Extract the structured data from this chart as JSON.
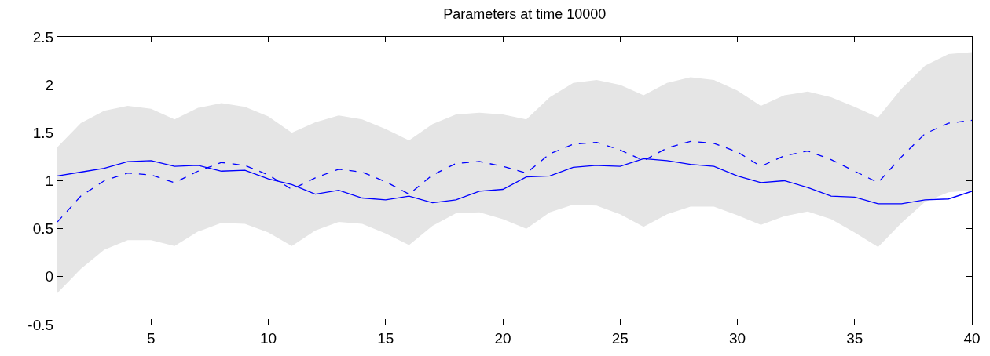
{
  "chart_data": {
    "type": "line",
    "title": "Parameters at time 10000",
    "x": [
      1,
      2,
      3,
      4,
      5,
      6,
      7,
      8,
      9,
      10,
      11,
      12,
      13,
      14,
      15,
      16,
      17,
      18,
      19,
      20,
      21,
      22,
      23,
      24,
      25,
      26,
      27,
      28,
      29,
      30,
      31,
      32,
      33,
      34,
      35,
      36,
      37,
      38,
      39,
      40
    ],
    "series": [
      {
        "color": "#0000ff",
        "line_style": "solid",
        "values": [
          1.05,
          1.09,
          1.13,
          1.2,
          1.21,
          1.15,
          1.16,
          1.1,
          1.11,
          1.02,
          0.96,
          0.86,
          0.9,
          0.82,
          0.8,
          0.84,
          0.77,
          0.8,
          0.89,
          0.91,
          1.04,
          1.05,
          1.14,
          1.16,
          1.15,
          1.23,
          1.21,
          1.17,
          1.15,
          1.05,
          0.98,
          1.0,
          0.93,
          0.84,
          0.83,
          0.76,
          0.76,
          0.8,
          0.81,
          0.89
        ]
      },
      {
        "color": "#0000ff",
        "line_style": "dashed",
        "values": [
          0.57,
          0.84,
          1.0,
          1.08,
          1.06,
          0.98,
          1.1,
          1.19,
          1.16,
          1.06,
          0.91,
          1.03,
          1.12,
          1.09,
          0.99,
          0.86,
          1.06,
          1.18,
          1.2,
          1.15,
          1.08,
          1.28,
          1.38,
          1.4,
          1.32,
          1.21,
          1.34,
          1.41,
          1.39,
          1.3,
          1.15,
          1.26,
          1.31,
          1.22,
          1.1,
          0.98,
          1.25,
          1.49,
          1.6,
          1.63
        ],
        "upper": [
          1.35,
          1.6,
          1.73,
          1.78,
          1.75,
          1.64,
          1.76,
          1.81,
          1.77,
          1.67,
          1.5,
          1.61,
          1.68,
          1.64,
          1.54,
          1.42,
          1.59,
          1.69,
          1.71,
          1.69,
          1.64,
          1.87,
          2.02,
          2.05,
          2.0,
          1.89,
          2.02,
          2.08,
          2.05,
          1.94,
          1.78,
          1.89,
          1.93,
          1.87,
          1.77,
          1.66,
          1.96,
          2.2,
          2.32,
          2.34
        ],
        "lower": [
          -0.17,
          0.08,
          0.28,
          0.38,
          0.38,
          0.32,
          0.47,
          0.56,
          0.55,
          0.46,
          0.32,
          0.48,
          0.57,
          0.55,
          0.45,
          0.33,
          0.53,
          0.66,
          0.67,
          0.6,
          0.5,
          0.67,
          0.75,
          0.74,
          0.65,
          0.52,
          0.65,
          0.73,
          0.73,
          0.64,
          0.54,
          0.63,
          0.68,
          0.6,
          0.46,
          0.31,
          0.56,
          0.78,
          0.88,
          0.9
        ]
      }
    ],
    "xlim": [
      1,
      40
    ],
    "xticks": [
      5,
      10,
      15,
      20,
      25,
      30,
      35,
      40
    ],
    "ylim": [
      -0.5,
      2.5
    ],
    "yticks": [
      -0.5,
      0,
      0.5,
      1,
      1.5,
      2,
      2.5
    ]
  }
}
